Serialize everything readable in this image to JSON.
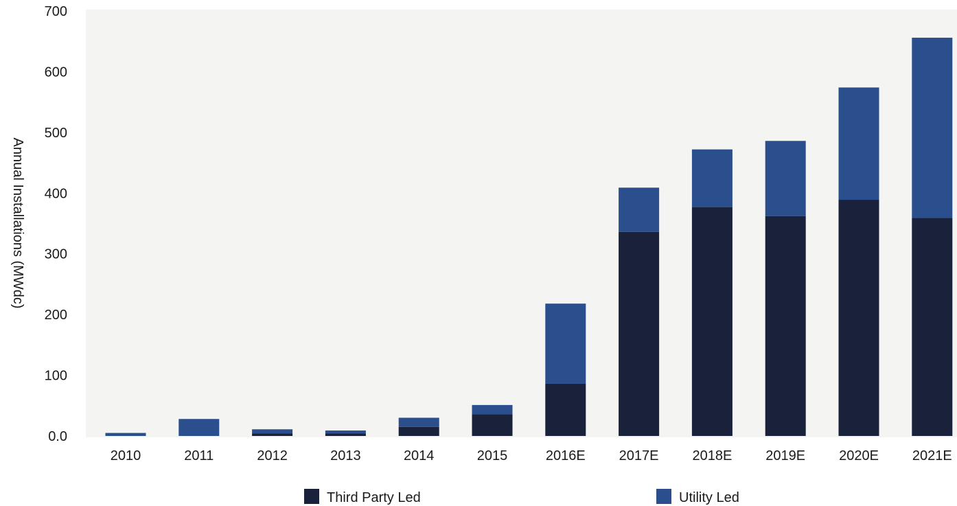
{
  "chart_data": {
    "type": "bar",
    "stacked": true,
    "ylabel": "Annual Installations (MWdc)",
    "ylim": [
      0,
      700
    ],
    "y_ticks": [
      "0.0",
      "100",
      "200",
      "300",
      "400",
      "500",
      "600",
      "700"
    ],
    "y_tick_values": [
      0,
      100,
      200,
      300,
      400,
      500,
      600,
      700
    ],
    "categories": [
      "2010",
      "2011",
      "2012",
      "2013",
      "2014",
      "2015",
      "2016E",
      "2017E",
      "2018E",
      "2019E",
      "2020E",
      "2021E"
    ],
    "series": [
      {
        "name": "Third Party Led",
        "color": "#19223a",
        "values": [
          0,
          0,
          4,
          4,
          15,
          36,
          86,
          336,
          377,
          362,
          389,
          359
        ]
      },
      {
        "name": "Utility Led",
        "color": "#2b4e8c",
        "values": [
          5,
          28,
          7,
          5,
          15,
          15,
          132,
          73,
          95,
          124,
          185,
          297
        ]
      }
    ],
    "legend_position": "bottom",
    "grid": false,
    "plot_background": "#f4f4f2"
  }
}
